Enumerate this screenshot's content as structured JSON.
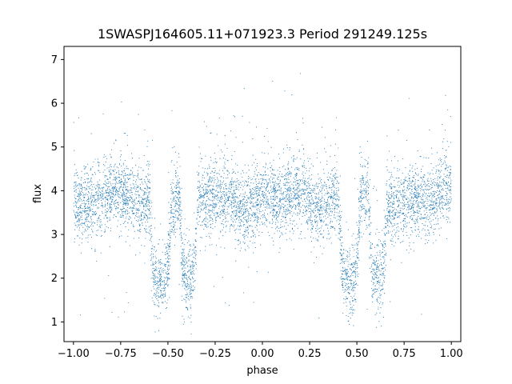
{
  "chart_data": {
    "type": "scatter",
    "title": "1SWASPJ164605.11+071923.3 Period 291249.125s",
    "xlabel": "phase",
    "ylabel": "flux",
    "xlim": [
      -1.05,
      1.05
    ],
    "ylim": [
      0.55,
      7.3
    ],
    "x_ticks": [
      -1.0,
      -0.75,
      -0.5,
      -0.25,
      0.0,
      0.25,
      0.5,
      0.75,
      1.0
    ],
    "x_tick_labels": [
      "−1.00",
      "−0.75",
      "−0.50",
      "−0.25",
      "0.00",
      "0.25",
      "0.50",
      "0.75",
      "1.00"
    ],
    "y_ticks": [
      1,
      2,
      3,
      4,
      5,
      6,
      7
    ],
    "y_tick_labels": [
      "1",
      "2",
      "3",
      "4",
      "5",
      "6",
      "7"
    ],
    "grid": false,
    "legend": "none",
    "marker_color": "#1f77b4",
    "light_curve": {
      "phase_range": [
        -1.0,
        1.0
      ],
      "baseline_flux": 3.8,
      "flux_scatter_band": [
        2.9,
        5.0
      ],
      "primary_eclipse": {
        "phases": [
          -0.54,
          0.46
        ],
        "min_flux": 1.9
      },
      "secondary_eclipse": {
        "phases": [
          -0.39,
          0.61
        ],
        "min_flux": 2.0
      },
      "outlier_flux_max": 7.0
    }
  }
}
